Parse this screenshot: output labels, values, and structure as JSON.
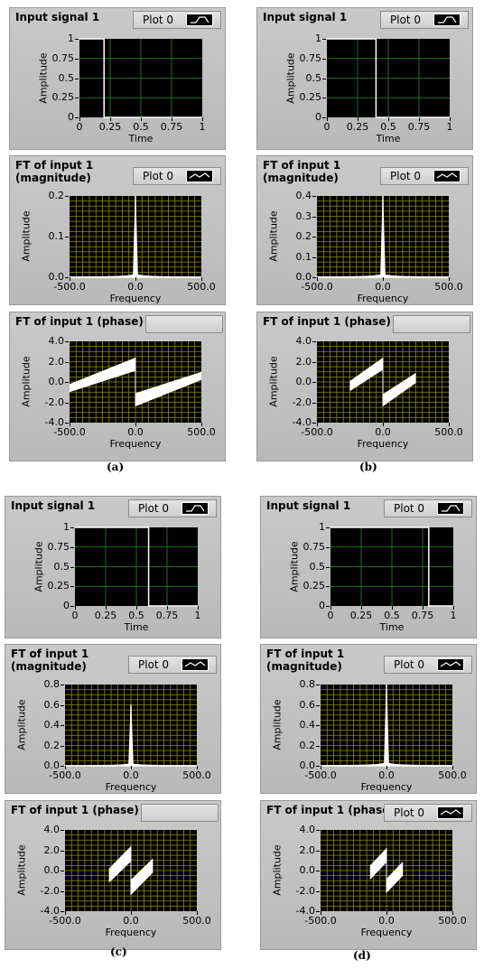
{
  "panels": [
    {
      "caption": "(a)",
      "charts": [
        {
          "type": "line",
          "title": "Input signal 1",
          "legend_label": "Plot 0",
          "xlabel": "Time",
          "ylabel": "Amplitude",
          "xlim": [
            0,
            1
          ],
          "ylim": [
            0,
            1
          ],
          "xticks": [
            "0",
            "0.25",
            "0.5",
            "0.75",
            "1"
          ],
          "yticks": [
            "0",
            "0.25",
            "0.5",
            "0.75",
            "1"
          ],
          "grid": "green",
          "kind": "pulse",
          "pulse_end": 0.2
        },
        {
          "type": "line",
          "title": "FT of input 1\n(magnitude)",
          "legend_label": "Plot 0",
          "xlabel": "Frequency",
          "ylabel": "Amplitude",
          "xlim": [
            -500,
            500
          ],
          "ylim": [
            0,
            0.2
          ],
          "xticks": [
            "-500.0",
            "0.0",
            "500.0"
          ],
          "yticks": [
            "0.0",
            "0.1",
            "0.2"
          ],
          "grid": "yellow",
          "kind": "magnitude",
          "peak": 0.2
        },
        {
          "type": "line",
          "title": "FT of input 1 (phase)",
          "legend_label": "",
          "xlabel": "Frequency",
          "ylabel": "Amplitude",
          "xlim": [
            -500,
            500
          ],
          "ylim": [
            -4,
            4
          ],
          "xticks": [
            "-500.0",
            "0.0",
            "500.0"
          ],
          "yticks": [
            "-4.0",
            "-2.0",
            "0.0",
            "2.0",
            "4.0"
          ],
          "grid": "yellow",
          "kind": "phase",
          "half_width": 500,
          "phase_left": {
            "at_min_top": -0.2,
            "at_min_bot": -1.0,
            "at_zero_top": 2.4,
            "at_zero_bot": 1.1
          },
          "phase_right": {
            "at_zero_top": -1.1,
            "at_zero_bot": -2.4,
            "at_max_top": 1.0,
            "at_max_bot": 0.2
          }
        }
      ]
    },
    {
      "caption": "(b)",
      "charts": [
        {
          "type": "line",
          "title": "Input signal 1",
          "legend_label": "Plot 0",
          "xlabel": "Time",
          "ylabel": "Amplitude",
          "xlim": [
            0,
            1
          ],
          "ylim": [
            0,
            1
          ],
          "xticks": [
            "0",
            "0.25",
            "0.5",
            "0.75",
            "1"
          ],
          "yticks": [
            "0",
            "0.25",
            "0.5",
            "0.75",
            "1"
          ],
          "grid": "green",
          "kind": "pulse",
          "pulse_end": 0.4
        },
        {
          "type": "line",
          "title": "FT of input 1\n(magnitude)",
          "legend_label": "Plot 0",
          "xlabel": "Frequency",
          "ylabel": "Amplitude",
          "xlim": [
            -500,
            500
          ],
          "ylim": [
            0,
            0.4
          ],
          "xticks": [
            "-500.0",
            "0.0",
            "500.0"
          ],
          "yticks": [
            "0.0",
            "0.1",
            "0.2",
            "0.3",
            "0.4"
          ],
          "grid": "yellow",
          "kind": "magnitude",
          "peak": 0.4
        },
        {
          "type": "line",
          "title": "FT of input 1 (phase)",
          "legend_label": "",
          "xlabel": "Frequency",
          "ylabel": "Amplitude",
          "xlim": [
            -500,
            500
          ],
          "ylim": [
            -4,
            4
          ],
          "xticks": [
            "-500.0",
            "0.0",
            "500.0"
          ],
          "yticks": [
            "-4.0",
            "-2.0",
            "0.0",
            "2.0",
            "4.0"
          ],
          "grid": "yellow",
          "kind": "phase",
          "half_width": 250,
          "phase_left": {
            "at_min_top": 0.1,
            "at_min_bot": -0.9,
            "at_zero_top": 2.4,
            "at_zero_bot": 1.2
          },
          "phase_right": {
            "at_zero_top": -1.2,
            "at_zero_bot": -2.4,
            "at_max_top": 0.9,
            "at_max_bot": -0.1
          }
        }
      ]
    },
    {
      "caption": "(c)",
      "charts": [
        {
          "type": "line",
          "title": "Input signal 1",
          "legend_label": "Plot 0",
          "xlabel": "Time",
          "ylabel": "Amplitude",
          "xlim": [
            0,
            1
          ],
          "ylim": [
            0,
            1
          ],
          "xticks": [
            "0",
            "0.25",
            "0.5",
            "0.75",
            "1"
          ],
          "yticks": [
            "0",
            "0.25",
            "0.5",
            "0.75",
            "1"
          ],
          "grid": "green",
          "kind": "pulse",
          "pulse_end": 0.6
        },
        {
          "type": "line",
          "title": "FT of input 1\n(magnitude)",
          "legend_label": "Plot 0",
          "xlabel": "Frequency",
          "ylabel": "Amplitude",
          "xlim": [
            -500,
            500
          ],
          "ylim": [
            0,
            0.8
          ],
          "xticks": [
            "-500.0",
            "0.0",
            "500.0"
          ],
          "yticks": [
            "0.0",
            "0.2",
            "0.4",
            "0.6",
            "0.8"
          ],
          "grid": "yellow",
          "kind": "magnitude",
          "peak": 0.6
        },
        {
          "type": "line",
          "title": "FT of input 1 (phase)",
          "legend_label": "",
          "xlabel": "Frequency",
          "ylabel": "Amplitude",
          "xlim": [
            -500,
            500
          ],
          "ylim": [
            -4,
            4
          ],
          "xticks": [
            "-500.0",
            "0.0",
            "500.0"
          ],
          "yticks": [
            "-4.0",
            "-2.0",
            "0.0",
            "2.0",
            "4.0"
          ],
          "grid": "yellow",
          "kind": "phase",
          "half_width": 167,
          "phase_left": {
            "at_min_top": 0.2,
            "at_min_bot": -1.2,
            "at_zero_top": 2.4,
            "at_zero_bot": 0.9
          },
          "phase_right": {
            "at_zero_top": -0.9,
            "at_zero_bot": -2.4,
            "at_max_top": 1.2,
            "at_max_bot": -0.2
          }
        }
      ]
    },
    {
      "caption": "(d)",
      "charts": [
        {
          "type": "line",
          "title": "Input signal 1",
          "legend_label": "Plot 0",
          "xlabel": "Time",
          "ylabel": "Amplitude",
          "xlim": [
            0,
            1
          ],
          "ylim": [
            0,
            1
          ],
          "xticks": [
            "0",
            "0.25",
            "0.5",
            "0.75",
            "1"
          ],
          "yticks": [
            "0",
            "0.25",
            "0.5",
            "0.75",
            "1"
          ],
          "grid": "green",
          "kind": "pulse",
          "pulse_end": 0.8
        },
        {
          "type": "line",
          "title": "FT of input 1\n(magnitude)",
          "legend_label": "Plot 0",
          "xlabel": "Frequency",
          "ylabel": "Amplitude",
          "xlim": [
            -500,
            500
          ],
          "ylim": [
            0,
            0.8
          ],
          "xticks": [
            "-500.0",
            "0.0",
            "500.0"
          ],
          "yticks": [
            "0.0",
            "0.2",
            "0.4",
            "0.6",
            "0.8"
          ],
          "grid": "yellow",
          "kind": "magnitude",
          "peak": 0.8
        },
        {
          "type": "line",
          "title": "FT of input 1 (phase)",
          "legend_label": "Plot 0",
          "xlabel": "Frequency",
          "ylabel": "Amplitude",
          "xlim": [
            -500,
            500
          ],
          "ylim": [
            -4,
            4
          ],
          "xticks": [
            "-500.0",
            "0.0",
            "500.0"
          ],
          "yticks": [
            "-4.0",
            "-2.0",
            "0.0",
            "2.0",
            "4.0"
          ],
          "grid": "yellow",
          "kind": "phase",
          "half_width": 125,
          "phase_left": {
            "at_min_top": 0.5,
            "at_min_bot": -0.9,
            "at_zero_top": 2.2,
            "at_zero_bot": 0.8
          },
          "phase_right": {
            "at_zero_top": -0.8,
            "at_zero_bot": -2.2,
            "at_max_top": 0.9,
            "at_max_bot": -0.5
          }
        }
      ]
    }
  ],
  "colors": {
    "plot_bg": "#000000",
    "grid_green": "#2c8a2c",
    "grid_yellow": "#8c8c18",
    "trace": "#ffffff"
  }
}
